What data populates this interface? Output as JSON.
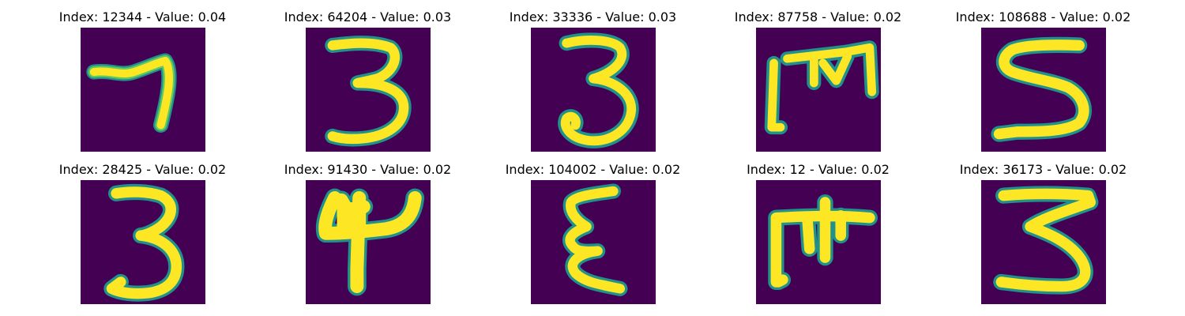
{
  "colors": {
    "background": "#440154",
    "edge": "#21918c",
    "mid": "#5ec962",
    "stroke": "#fde725"
  },
  "panels": [
    {
      "title": "Index: 12344 - Value: 0.04",
      "glyph": "seven-icon"
    },
    {
      "title": "Index: 64204 - Value: 0.03",
      "glyph": "three-icon"
    },
    {
      "title": "Index: 33336 - Value: 0.03",
      "glyph": "three-icon"
    },
    {
      "title": "Index: 87758 - Value: 0.02",
      "glyph": "m-bracket-icon"
    },
    {
      "title": "Index: 108688 - Value: 0.02",
      "glyph": "s-icon"
    },
    {
      "title": "Index: 28425 - Value: 0.02",
      "glyph": "three-icon"
    },
    {
      "title": "Index: 91430 - Value: 0.02",
      "glyph": "four-icon"
    },
    {
      "title": "Index: 104002 - Value: 0.02",
      "glyph": "epsilon-icon"
    },
    {
      "title": "Index: 12 - Value: 0.02",
      "glyph": "m-bracket-icon"
    },
    {
      "title": "Index: 36173 - Value: 0.02",
      "glyph": "three-angular-icon"
    }
  ]
}
